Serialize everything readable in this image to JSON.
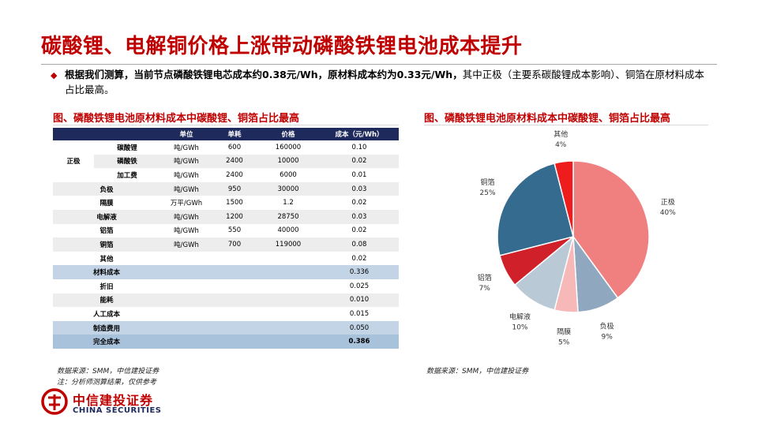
{
  "title": "碳酸锂、电解铜价格上涨带动磷酸铁锂电池成本提升",
  "bullet": {
    "bold": "根据我们测算，当前节点磷酸铁锂电芯成本约0.38元/Wh，原材料成本约为0.33元/Wh，",
    "normal": "其中正极（主要系碳酸锂成本影响）、铜箔在原材料成本占比最高。"
  },
  "table": {
    "title": "图、磷酸铁锂电池原材料成本中碳酸锂、铜箔占比最高",
    "headers": [
      "",
      "",
      "单位",
      "单耗",
      "价格",
      "成本（元/Wh）"
    ],
    "category_cathode": "正极",
    "rows": [
      {
        "name": "碳酸锂",
        "unit": "吨/GWh",
        "usage": "600",
        "price": "160000",
        "cost": "0.10"
      },
      {
        "name": "磷酸铁",
        "unit": "吨/GWh",
        "usage": "2400",
        "price": "10000",
        "cost": "0.02"
      },
      {
        "name": "加工费",
        "unit": "吨/GWh",
        "usage": "2400",
        "price": "6000",
        "cost": "0.01"
      },
      {
        "name": "负极",
        "unit": "吨/GWh",
        "usage": "950",
        "price": "30000",
        "cost": "0.03"
      },
      {
        "name": "隔膜",
        "unit": "万平/GWh",
        "usage": "1500",
        "price": "1.2",
        "cost": "0.02"
      },
      {
        "name": "电解液",
        "unit": "吨/GWh",
        "usage": "1200",
        "price": "28750",
        "cost": "0.03"
      },
      {
        "name": "铝箔",
        "unit": "吨/GWh",
        "usage": "550",
        "price": "40000",
        "cost": "0.02"
      },
      {
        "name": "铜箔",
        "unit": "吨/GWh",
        "usage": "700",
        "price": "119000",
        "cost": "0.08"
      },
      {
        "name": "其他",
        "unit": "",
        "usage": "",
        "price": "",
        "cost": "0.02"
      },
      {
        "name": "材料成本",
        "unit": "",
        "usage": "",
        "price": "",
        "cost": "0.336"
      },
      {
        "name": "折旧",
        "unit": "",
        "usage": "",
        "price": "",
        "cost": "0.025"
      },
      {
        "name": "能耗",
        "unit": "",
        "usage": "",
        "price": "",
        "cost": "0.010"
      },
      {
        "name": "人工成本",
        "unit": "",
        "usage": "",
        "price": "",
        "cost": "0.015"
      },
      {
        "name": "制造费用",
        "unit": "",
        "usage": "",
        "price": "",
        "cost": "0.050"
      },
      {
        "name": "完全成本",
        "unit": "",
        "usage": "",
        "price": "",
        "cost": "0.386"
      }
    ],
    "source": "数据来源：SMM，中信建投证券",
    "note": "注：分析师测算结果，仅供参考"
  },
  "chart_data": {
    "type": "pie",
    "title": "图、磷酸铁锂电池原材料成本中碳酸锂、铜箔占比最高",
    "start_angle_deg": 0,
    "direction": "clockwise",
    "slices": [
      {
        "label": "正极",
        "pct_label": "40%",
        "value": 40,
        "color": "#f08080"
      },
      {
        "label": "负极",
        "pct_label": "9%",
        "value": 9,
        "color": "#8fa8bf"
      },
      {
        "label": "隔膜",
        "pct_label": "5%",
        "value": 5,
        "color": "#f7b8b8"
      },
      {
        "label": "电解液",
        "pct_label": "10%",
        "value": 10,
        "color": "#b9c9d6"
      },
      {
        "label": "铝箔",
        "pct_label": "7%",
        "value": 7,
        "color": "#d0202a"
      },
      {
        "label": "铜箔",
        "pct_label": "25%",
        "value": 25,
        "color": "#346b8e"
      },
      {
        "label": "其他",
        "pct_label": "4%",
        "value": 4,
        "color": "#ee1c1c"
      }
    ],
    "source": "数据来源：SMM，中信建投证券"
  },
  "logo": {
    "cn": "中信建投证券",
    "en": "CHINA SECURITIES"
  },
  "colors": {
    "accent": "#c00000",
    "header_navy": "#1f2a5c"
  }
}
